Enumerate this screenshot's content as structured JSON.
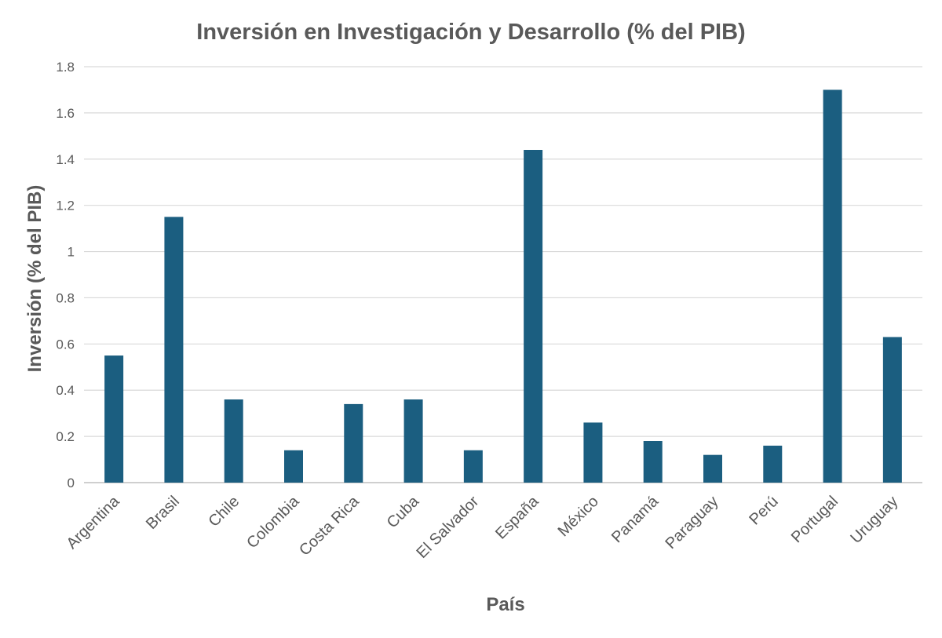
{
  "chart_data": {
    "type": "bar",
    "title": "Inversión en Investigación y Desarrollo (% del PIB)",
    "xlabel": "País",
    "ylabel": "Inversión (% del PIB)",
    "categories": [
      "Argentina",
      "Brasil",
      "Chile",
      "Colombia",
      "Costa Rica",
      "Cuba",
      "El Salvador",
      "España",
      "México",
      "Panamá",
      "Paraguay",
      "Perú",
      "Portugal",
      "Uruguay"
    ],
    "values": [
      0.55,
      1.15,
      0.36,
      0.14,
      0.34,
      0.36,
      0.14,
      1.44,
      0.26,
      0.18,
      0.12,
      0.16,
      1.7,
      0.63
    ],
    "ylim": [
      0,
      1.8
    ],
    "yticks": [
      "0",
      "0.2",
      "0.4",
      "0.6",
      "0.8",
      "1",
      "1.2",
      "1.4",
      "1.6",
      "1.8"
    ],
    "grid": true,
    "bar_color": "#1b5e80",
    "grid_color": "#d9d9d9",
    "text_color": "#595959"
  }
}
